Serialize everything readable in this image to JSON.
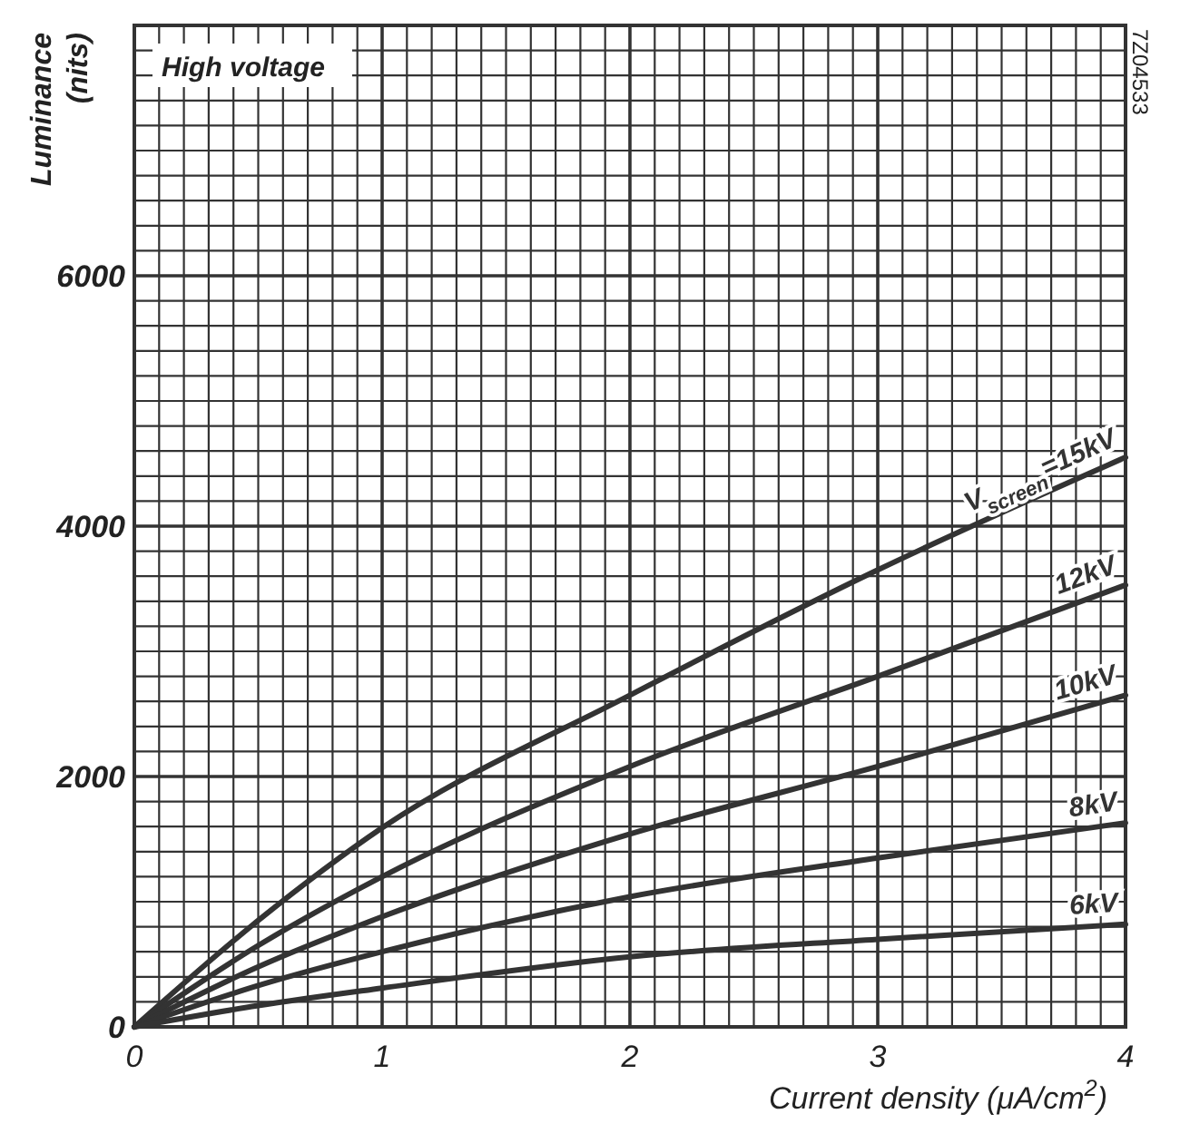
{
  "chart_data": {
    "type": "line",
    "xlabel": "Current density (μA/cm$^{2}$)",
    "ylabel": "Luminance\n(nits)",
    "annotations": [
      "High voltage",
      "7Z04533"
    ],
    "x": [
      0,
      0.5,
      1,
      2,
      3,
      4
    ],
    "series": [
      {
        "name": "V$_{screen}$=15kV",
        "color": "#333333",
        "values": [
          0,
          850,
          1590,
          2650,
          3650,
          4550
        ]
      },
      {
        "name": "12kV",
        "color": "#333333",
        "values": [
          0,
          650,
          1200,
          2080,
          2800,
          3530
        ]
      },
      {
        "name": "10kV",
        "color": "#333333",
        "values": [
          0,
          480,
          880,
          1540,
          2080,
          2650
        ]
      },
      {
        "name": "8kV",
        "color": "#333333",
        "values": [
          0,
          330,
          600,
          1040,
          1350,
          1630
        ]
      },
      {
        "name": "6kV",
        "color": "#333333",
        "values": [
          0,
          170,
          310,
          560,
          700,
          820
        ]
      }
    ],
    "xlim": [
      0,
      4
    ],
    "ylim": [
      0,
      8000
    ],
    "xticks": [
      0,
      {
        "value": 0.1,
        "label": null
      },
      {
        "value": 0.2,
        "label": null
      },
      {
        "value": 0.3,
        "label": null
      },
      {
        "value": 0.4,
        "label": null
      },
      {
        "value": 0.5,
        "label": null
      },
      {
        "value": 0.6,
        "label": null
      },
      {
        "value": 0.7,
        "label": null
      },
      {
        "value": 0.8,
        "label": null
      },
      {
        "value": 0.9,
        "label": null
      },
      1,
      {
        "value": 1.1,
        "label": null
      },
      {
        "value": 1.2,
        "label": null
      },
      {
        "value": 1.3,
        "label": null
      },
      {
        "value": 1.4,
        "label": null
      },
      {
        "value": 1.5,
        "label": null
      },
      {
        "value": 1.6,
        "label": null
      },
      {
        "value": 1.7,
        "label": null
      },
      {
        "value": 1.8,
        "label": null
      },
      {
        "value": 1.9,
        "label": null
      },
      2,
      {
        "value": 2.1,
        "label": null
      },
      {
        "value": 2.2,
        "label": null
      },
      {
        "value": 2.3,
        "label": null
      },
      {
        "value": 2.4,
        "label": null
      },
      {
        "value": 2.5,
        "label": null
      },
      {
        "value": 2.6,
        "label": null
      },
      {
        "value": 2.7,
        "label": null
      },
      {
        "value": 2.8,
        "label": null
      },
      {
        "value": 2.9,
        "label": null
      },
      3,
      {
        "value": 3.1,
        "label": null
      },
      {
        "value": 3.2,
        "label": null
      },
      {
        "value": 3.3,
        "label": null
      },
      {
        "value": 3.4,
        "label": null
      },
      {
        "value": 3.5,
        "label": null
      },
      {
        "value": 3.6,
        "label": null
      },
      {
        "value": 3.7,
        "label": null
      },
      {
        "value": 3.8,
        "label": null
      },
      {
        "value": 3.9,
        "label": null
      },
      4
    ],
    "yticks": [
      0,
      {
        "value": 200,
        "label": null
      },
      {
        "value": 400,
        "label": null
      },
      {
        "value": 600,
        "label": null
      },
      {
        "value": 800,
        "label": null
      },
      {
        "value": 1000,
        "label": null
      },
      {
        "value": 1200,
        "label": null
      },
      {
        "value": 1400,
        "label": null
      },
      {
        "value": 1600,
        "label": null
      },
      {
        "value": 1800,
        "label": null
      },
      2000,
      {
        "value": 2200,
        "label": null
      },
      {
        "value": 2400,
        "label": null
      },
      {
        "value": 2600,
        "label": null
      },
      {
        "value": 2800,
        "label": null
      },
      {
        "value": 3000,
        "label": null
      },
      {
        "value": 3200,
        "label": null
      },
      {
        "value": 3400,
        "label": null
      },
      {
        "value": 3600,
        "label": null
      },
      {
        "value": 3800,
        "label": null
      },
      4000,
      {
        "value": 4200,
        "label": null
      },
      {
        "value": 4400,
        "label": null
      },
      {
        "value": 4600,
        "label": null
      },
      {
        "value": 4800,
        "label": null
      },
      {
        "value": 5000,
        "label": null
      },
      {
        "value": 5200,
        "label": null
      },
      {
        "value": 5400,
        "label": null
      },
      {
        "value": 5600,
        "label": null
      },
      {
        "value": 5800,
        "label": null
      },
      6000,
      {
        "value": 6200,
        "label": null
      },
      {
        "value": 6400,
        "label": null
      },
      {
        "value": 6600,
        "label": null
      },
      {
        "value": 6800,
        "label": null
      },
      {
        "value": 7000,
        "label": null
      },
      {
        "value": 7200,
        "label": null
      },
      {
        "value": 7400,
        "label": null
      },
      {
        "value": 7600,
        "label": null
      },
      {
        "value": 7800,
        "label": null
      },
      {
        "value": 8000,
        "label": null
      }
    ],
    "grid": true,
    "marker": "none",
    "line_style": "solid"
  }
}
